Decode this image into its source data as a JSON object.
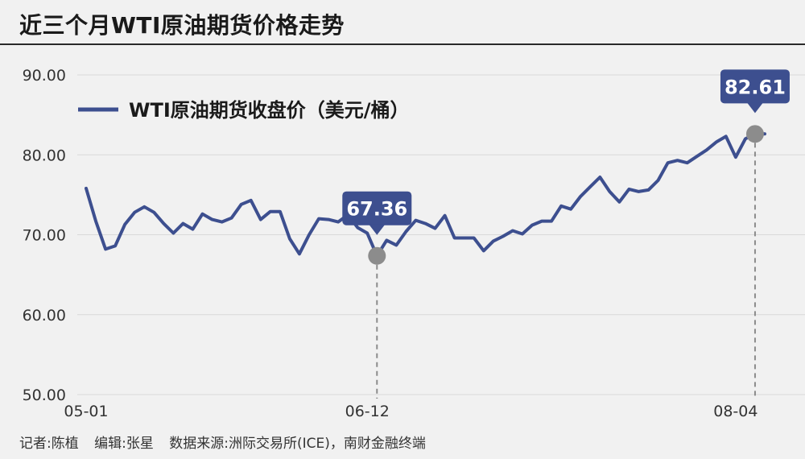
{
  "header": {
    "title": "近三个月WTI原油期货价格走势"
  },
  "footer": {
    "reporter": "记者:陈植",
    "editor": "编辑:张星",
    "source": "数据来源:洲际交易所(ICE)，南财金融终端"
  },
  "chart_data": {
    "type": "line",
    "title": "近三个月WTI原油期货价格走势",
    "xlabel": "",
    "ylabel": "",
    "ylim": [
      50,
      90
    ],
    "yticks": [
      "50.00",
      "60.00",
      "70.00",
      "80.00",
      "90.00"
    ],
    "x_tick_labels": [
      {
        "index": 0,
        "label": "05-01"
      },
      {
        "index": 29,
        "label": "06-12"
      },
      {
        "index": 67,
        "label": "08-04"
      }
    ],
    "grid": true,
    "legend_position": "top-left",
    "series": [
      {
        "name": "WTI原油期货收盘价（美元/桶）",
        "color": "#3d4f8f",
        "values": [
          75.8,
          71.7,
          68.2,
          68.6,
          71.3,
          72.8,
          73.5,
          72.8,
          71.4,
          70.2,
          71.4,
          70.7,
          72.6,
          71.9,
          71.6,
          72.1,
          73.8,
          74.3,
          71.9,
          72.9,
          72.9,
          69.5,
          67.6,
          70.0,
          72.0,
          71.9,
          71.6,
          72.5,
          70.9,
          70.2,
          67.36,
          69.3,
          68.7,
          70.4,
          71.8,
          71.4,
          70.8,
          72.4,
          69.6,
          69.6,
          69.6,
          68.0,
          69.2,
          69.8,
          70.5,
          70.1,
          71.2,
          71.7,
          71.7,
          73.6,
          73.2,
          74.8,
          76.0,
          77.2,
          75.4,
          74.1,
          75.7,
          75.4,
          75.6,
          76.8,
          79.0,
          79.3,
          79.0,
          79.8,
          80.6,
          81.6,
          82.3,
          79.7,
          82.0,
          82.61,
          82.61
        ],
        "annotations": [
          {
            "index": 30,
            "value": 67.36,
            "label": "67.36"
          },
          {
            "index": 69,
            "value": 82.61,
            "label": "82.61"
          }
        ]
      }
    ]
  },
  "colors": {
    "line": "#3d4f8f",
    "callout": "#3d4f8f",
    "marker": "#8c8c8c",
    "grid": "#d9d9d9",
    "background": "#f1f1f1"
  }
}
